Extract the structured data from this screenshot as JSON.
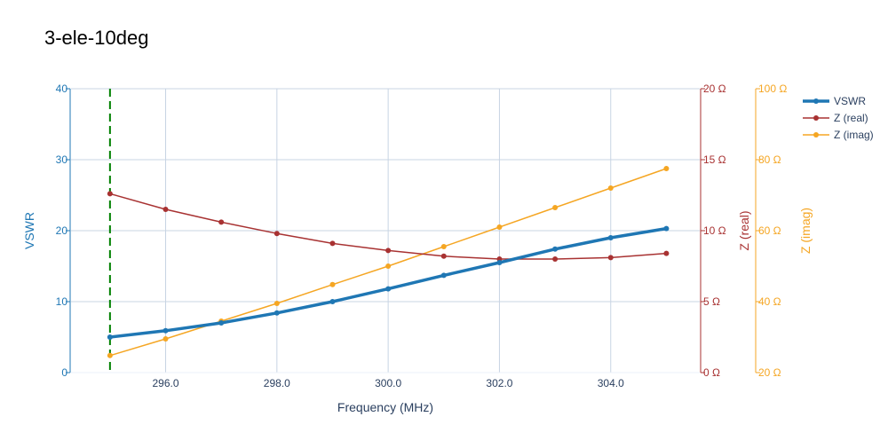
{
  "chart_data": {
    "type": "line",
    "title": "3-ele-10deg",
    "xlabel": "Frequency (MHz)",
    "x": [
      295,
      296,
      297,
      298,
      299,
      300,
      301,
      302,
      303,
      304,
      305
    ],
    "xlim": [
      294.3,
      305.6
    ],
    "xticks": [
      296,
      298,
      300,
      302,
      304
    ],
    "xtick_labels": [
      "296.0",
      "298.0",
      "300.0",
      "302.0",
      "304.0"
    ],
    "grid": true,
    "legend_position": "top-right",
    "marker_line": {
      "x": 295,
      "color": "#008000",
      "style": "dashed"
    },
    "axes": [
      {
        "id": "y1",
        "label": "VSWR",
        "range": [
          0,
          40
        ],
        "ticks": [
          0,
          10,
          20,
          30,
          40
        ],
        "tick_labels": [
          "0",
          "10",
          "20",
          "30",
          "40"
        ],
        "color": "#1f77b4",
        "side": "left"
      },
      {
        "id": "y2",
        "label": "Z (real)",
        "range": [
          0,
          20
        ],
        "ticks": [
          0,
          5,
          10,
          15,
          20
        ],
        "tick_labels": [
          "0 Ω",
          "5 Ω",
          "10 Ω",
          "15 Ω",
          "20 Ω"
        ],
        "color": "#a83232",
        "side": "right"
      },
      {
        "id": "y3",
        "label": "Z (imag)",
        "range": [
          20,
          100
        ],
        "ticks": [
          20,
          40,
          60,
          80,
          100
        ],
        "tick_labels": [
          "20 Ω",
          "40 Ω",
          "60 Ω",
          "80 Ω",
          "100 Ω"
        ],
        "color": "#f5a623",
        "side": "right"
      }
    ],
    "series": [
      {
        "name": "VSWR",
        "axis": "y1",
        "color": "#1f77b4",
        "values": [
          5.0,
          5.9,
          7.0,
          8.4,
          10.0,
          11.8,
          13.7,
          15.5,
          17.4,
          19.0,
          20.3
        ]
      },
      {
        "name": "Z (real)",
        "axis": "y2",
        "color": "#a83232",
        "values": [
          12.6,
          11.5,
          10.6,
          9.8,
          9.1,
          8.6,
          8.2,
          8.0,
          8.0,
          8.1,
          8.4
        ]
      },
      {
        "name": "Z (imag)",
        "axis": "y3",
        "color": "#f5a623",
        "values": [
          24.8,
          29.5,
          34.5,
          39.5,
          44.8,
          50.0,
          55.5,
          61.0,
          66.5,
          72.0,
          77.5
        ]
      }
    ]
  }
}
